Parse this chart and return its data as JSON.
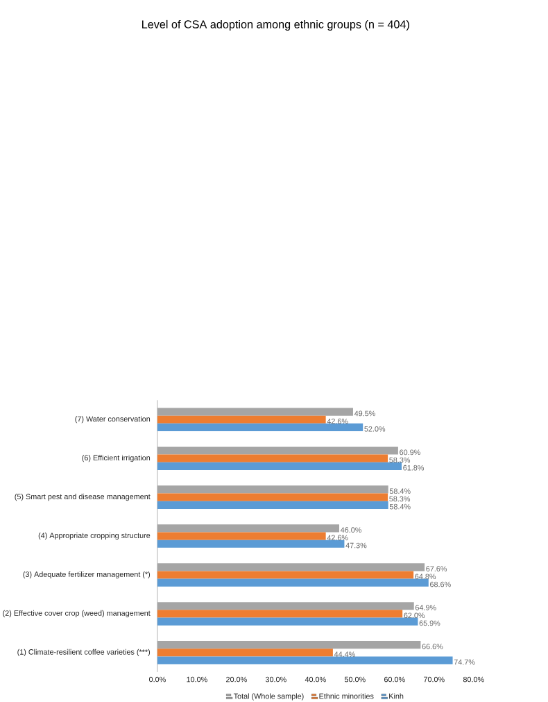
{
  "chart_data": {
    "type": "bar",
    "orientation": "horizontal",
    "title": "Level of CSA adoption among ethnic groups (n = 404)",
    "categories": [
      "(7) Water conservation",
      "(6) Efficient irrigation",
      "(5) Smart pest and disease management",
      "(4) Appropriate cropping structure",
      "(3) Adequate fertilizer management (*)",
      "(2) Effective cover crop (weed) management",
      "(1) Climate-resilient coffee varieties (***)"
    ],
    "series": [
      {
        "name": "Total (Whole sample)",
        "color": "#a5a5a5",
        "values": [
          49.5,
          60.9,
          58.4,
          46.0,
          67.6,
          64.9,
          66.6
        ],
        "value_labels": [
          "49.5%",
          "60.9%",
          "58.4%",
          "46.0%",
          "67.6%",
          "64.9%",
          "66.6%"
        ]
      },
      {
        "name": "Ethnic minorities",
        "color": "#ed7d31",
        "values": [
          42.6,
          58.3,
          58.3,
          42.6,
          64.8,
          62.0,
          44.4
        ],
        "value_labels": [
          "42.6%",
          "58.3%",
          "58.3%",
          "42.6%",
          "64.8%",
          "62.0%",
          "44.4%"
        ]
      },
      {
        "name": "Kinh",
        "color": "#5b9bd5",
        "values": [
          52.0,
          61.8,
          58.4,
          47.3,
          68.6,
          65.9,
          74.7
        ],
        "value_labels": [
          "52.0%",
          "61.8%",
          "58.4%",
          "47.3%",
          "68.6%",
          "65.9%",
          "74.7%"
        ]
      }
    ],
    "xlim": [
      0,
      80
    ],
    "xticks": [
      {
        "value": 0,
        "label": "0.0%"
      },
      {
        "value": 10,
        "label": "10.0%"
      },
      {
        "value": 20,
        "label": "20.0%"
      },
      {
        "value": 30,
        "label": "30.0%"
      },
      {
        "value": 40,
        "label": "40.0%"
      },
      {
        "value": 50,
        "label": "50.0%"
      },
      {
        "value": 60,
        "label": "60.0%"
      },
      {
        "value": 70,
        "label": "70.0%"
      },
      {
        "value": 80,
        "label": "80.0%"
      }
    ],
    "grid": false,
    "legend": "bottom"
  }
}
